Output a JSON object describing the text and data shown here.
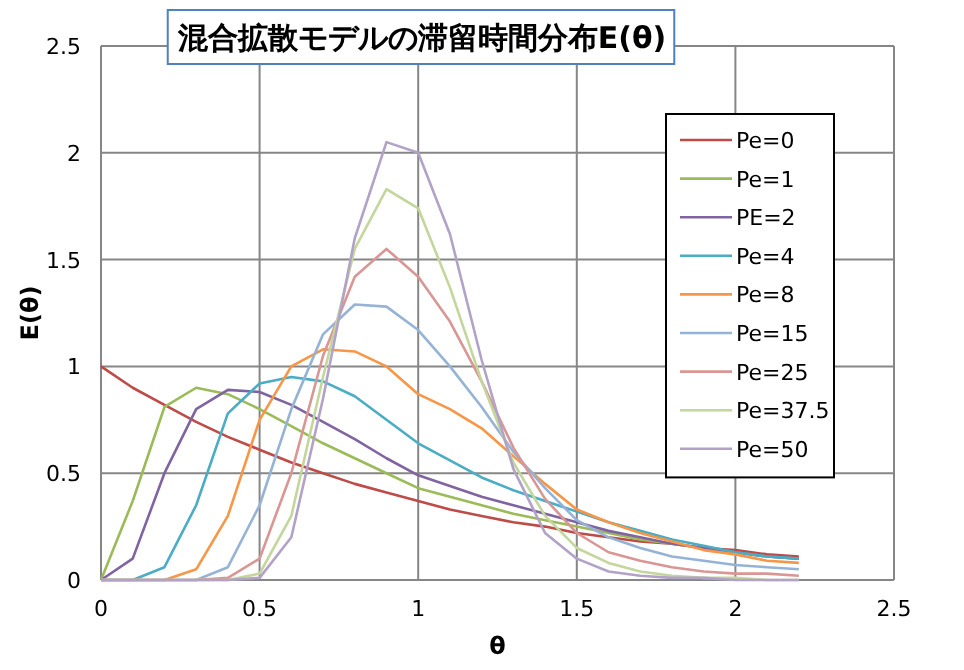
{
  "chart_data": {
    "type": "line",
    "title": "混合拡散モデルの滞留時間分布E(θ)",
    "xlabel": "θ",
    "ylabel": "E(θ)",
    "x": [
      0,
      0.1,
      0.2,
      0.3,
      0.4,
      0.5,
      0.6,
      0.7,
      0.8,
      0.9,
      1.0,
      1.1,
      1.2,
      1.3,
      1.4,
      1.5,
      1.6,
      1.7,
      1.8,
      1.9,
      2.0,
      2.1,
      2.2
    ],
    "xlim": [
      0,
      2.5
    ],
    "xticks": [
      0,
      0.5,
      1,
      1.5,
      2,
      2.5
    ],
    "ylim": [
      0,
      2.5
    ],
    "yticks": [
      0,
      0.5,
      1,
      1.5,
      2,
      2.5
    ],
    "grid": true,
    "legend": "top right",
    "marker": "none",
    "line_style": "solid",
    "series": [
      {
        "name": "Pe=0",
        "color": "#be4b48",
        "values": [
          1,
          0.9,
          0.82,
          0.74,
          0.67,
          0.61,
          0.55,
          0.5,
          0.45,
          0.41,
          0.37,
          0.33,
          0.3,
          0.27,
          0.25,
          0.22,
          0.2,
          0.18,
          0.17,
          0.15,
          0.14,
          0.12,
          0.11
        ]
      },
      {
        "name": "Pe=1",
        "color": "#9bbb59",
        "values": [
          0,
          0.37,
          0.81,
          0.9,
          0.87,
          0.8,
          0.72,
          0.64,
          0.57,
          0.5,
          0.43,
          0.39,
          0.35,
          0.31,
          0.28,
          0.25,
          0.22,
          0.19,
          0.17,
          0.15,
          0.13,
          0.11,
          0.1
        ]
      },
      {
        "name": "PE=2",
        "color": "#8064a2",
        "values": [
          0,
          0.1,
          0.5,
          0.8,
          0.89,
          0.88,
          0.82,
          0.74,
          0.66,
          0.57,
          0.49,
          0.44,
          0.39,
          0.35,
          0.31,
          0.27,
          0.23,
          0.2,
          0.17,
          0.15,
          0.13,
          0.11,
          0.1
        ]
      },
      {
        "name": "Pe=4",
        "color": "#4bacc6",
        "values": [
          0,
          0,
          0.06,
          0.35,
          0.78,
          0.92,
          0.95,
          0.93,
          0.86,
          0.75,
          0.64,
          0.56,
          0.48,
          0.42,
          0.37,
          0.32,
          0.27,
          0.23,
          0.19,
          0.16,
          0.13,
          0.11,
          0.1
        ]
      },
      {
        "name": "Pe=8",
        "color": "#f79646",
        "values": [
          0,
          0,
          0,
          0.05,
          0.3,
          0.75,
          1.0,
          1.08,
          1.07,
          1.0,
          0.87,
          0.8,
          0.71,
          0.58,
          0.45,
          0.33,
          0.27,
          0.22,
          0.18,
          0.14,
          0.12,
          0.09,
          0.08
        ]
      },
      {
        "name": "Pe=15",
        "color": "#95b3d7",
        "values": [
          0,
          0,
          0,
          0,
          0.06,
          0.35,
          0.8,
          1.15,
          1.29,
          1.28,
          1.17,
          1.0,
          0.81,
          0.6,
          0.43,
          0.28,
          0.2,
          0.15,
          0.11,
          0.09,
          0.07,
          0.06,
          0.05
        ]
      },
      {
        "name": "Pe=25",
        "color": "#d99694",
        "values": [
          0,
          0,
          0,
          0,
          0.01,
          0.1,
          0.5,
          1.05,
          1.42,
          1.55,
          1.42,
          1.21,
          0.93,
          0.62,
          0.38,
          0.22,
          0.13,
          0.09,
          0.06,
          0.04,
          0.03,
          0.03,
          0.02
        ]
      },
      {
        "name": "Pe=37.5",
        "color": "#c3d69b",
        "values": [
          0,
          0,
          0,
          0,
          0,
          0.03,
          0.3,
          0.95,
          1.55,
          1.83,
          1.74,
          1.37,
          0.93,
          0.55,
          0.3,
          0.15,
          0.08,
          0.04,
          0.02,
          0.01,
          0.01,
          0,
          0
        ]
      },
      {
        "name": "Pe=50",
        "color": "#b3a2c7",
        "values": [
          0,
          0,
          0,
          0,
          0,
          0.01,
          0.2,
          0.85,
          1.6,
          2.05,
          2.0,
          1.62,
          1.03,
          0.52,
          0.22,
          0.1,
          0.04,
          0.02,
          0.01,
          0.01,
          0,
          0,
          0
        ]
      }
    ]
  }
}
